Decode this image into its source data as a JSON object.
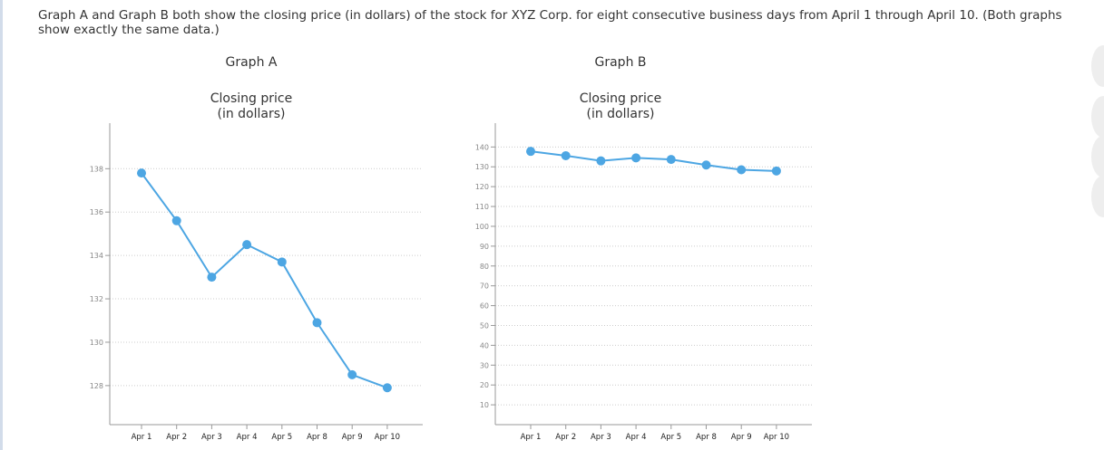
{
  "question": {
    "text": "Graph A and Graph B both show the closing price (in dollars) of the stock for XYZ Corp. for eight consecutive business days from April 1 through April 10. (Both graphs show exactly the same data.)"
  },
  "colors": {
    "series": "#4da6e3",
    "axis": "#999999",
    "grid": "#cccccc"
  },
  "chart_data": [
    {
      "type": "line",
      "title": "Graph A",
      "ylabel": "Closing price (in dollars)",
      "ylabel_lines": [
        "Closing price",
        "(in dollars)"
      ],
      "xlabel": "",
      "categories": [
        "Apr 1",
        "Apr 2",
        "Apr 3",
        "Apr 4",
        "Apr 5",
        "Apr 8",
        "Apr 9",
        "Apr 10"
      ],
      "values": [
        137.8,
        135.6,
        133.0,
        134.5,
        133.7,
        130.9,
        128.5,
        127.9
      ],
      "ylim": [
        126.2,
        140.1
      ],
      "yticks": [
        128,
        130,
        132,
        134,
        136,
        138
      ],
      "grid": true
    },
    {
      "type": "line",
      "title": "Graph B",
      "ylabel": "Closing price (in dollars)",
      "ylabel_lines": [
        "Closing price",
        "(in dollars)"
      ],
      "xlabel": "",
      "categories": [
        "Apr 1",
        "Apr 2",
        "Apr 3",
        "Apr 4",
        "Apr 5",
        "Apr 8",
        "Apr 9",
        "Apr 10"
      ],
      "values": [
        137.8,
        135.6,
        133.0,
        134.5,
        133.7,
        130.9,
        128.5,
        127.9
      ],
      "ylim": [
        0,
        147
      ],
      "yticks": [
        10,
        20,
        30,
        40,
        50,
        60,
        70,
        80,
        90,
        100,
        110,
        120,
        130,
        140
      ],
      "grid": true
    }
  ]
}
